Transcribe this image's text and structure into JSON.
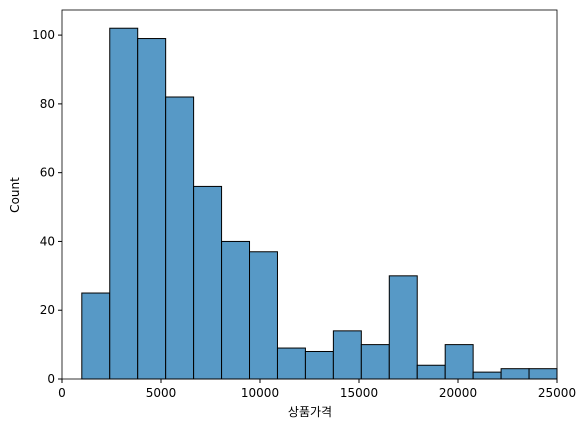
{
  "chart_data": {
    "type": "histogram",
    "xlabel": "상품가격",
    "ylabel": "Count",
    "bins": [
      1000,
      2411.76,
      3823.53,
      5235.29,
      6647.06,
      8058.82,
      9470.59,
      10882.35,
      12294.12,
      13705.88,
      15117.65,
      16529.41,
      17941.18,
      19352.94,
      20764.71,
      22176.47,
      23588.24,
      25000
    ],
    "values": [
      25,
      102,
      99,
      82,
      56,
      40,
      37,
      9,
      8,
      14,
      10,
      30,
      4,
      10,
      2,
      3,
      3
    ],
    "color": "#5799c6",
    "xlim": [
      0,
      25000
    ],
    "xticks": [
      0,
      5000,
      10000,
      15000,
      20000,
      25000
    ],
    "ylim": [
      0,
      107.3
    ],
    "yticks": [
      0,
      20,
      40,
      60,
      80,
      100
    ]
  }
}
